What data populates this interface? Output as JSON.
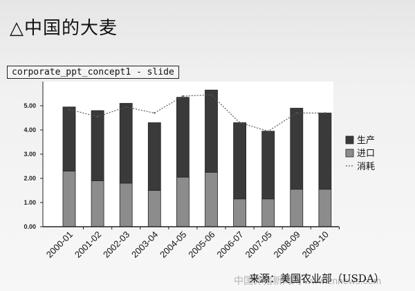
{
  "slide": {
    "title": "△中国的大麦",
    "window_label": "corporate_ppt_concept1 - slide",
    "source": "来源：美国农业部（USDA）",
    "watermark": "中国养猪新闻网 www.znnews.com"
  },
  "colors": {
    "production": "#3a3a3a",
    "imports": "#8c8c8c",
    "consumption_line": "#555555",
    "plot_bg": "#ffffff"
  },
  "chart_data": {
    "type": "bar",
    "stacked": true,
    "categories": [
      "2000-01",
      "2001-02",
      "2002-03",
      "2003-04",
      "2004-05",
      "2005-06",
      "2006-07",
      "2007-05",
      "2008-09",
      "2009-10"
    ],
    "series": [
      {
        "name": "进口",
        "values": [
          2.3,
          1.9,
          1.8,
          1.5,
          2.05,
          2.25,
          1.15,
          1.15,
          1.55,
          1.55
        ]
      },
      {
        "name": "生产",
        "values": [
          2.65,
          2.9,
          3.3,
          2.8,
          3.3,
          3.4,
          3.15,
          2.8,
          3.35,
          3.15
        ]
      }
    ],
    "line_series": {
      "name": "消耗",
      "values": [
        4.85,
        4.55,
        4.95,
        4.7,
        5.4,
        5.45,
        4.3,
        3.95,
        4.7,
        4.7
      ]
    },
    "y_ticks": [
      "0.00",
      "1.00",
      "2.00",
      "3.00",
      "4.00",
      "5.00"
    ],
    "ylim": [
      0,
      6
    ],
    "legend": [
      "生产",
      "进口",
      "消耗"
    ],
    "legend_position": "right"
  }
}
